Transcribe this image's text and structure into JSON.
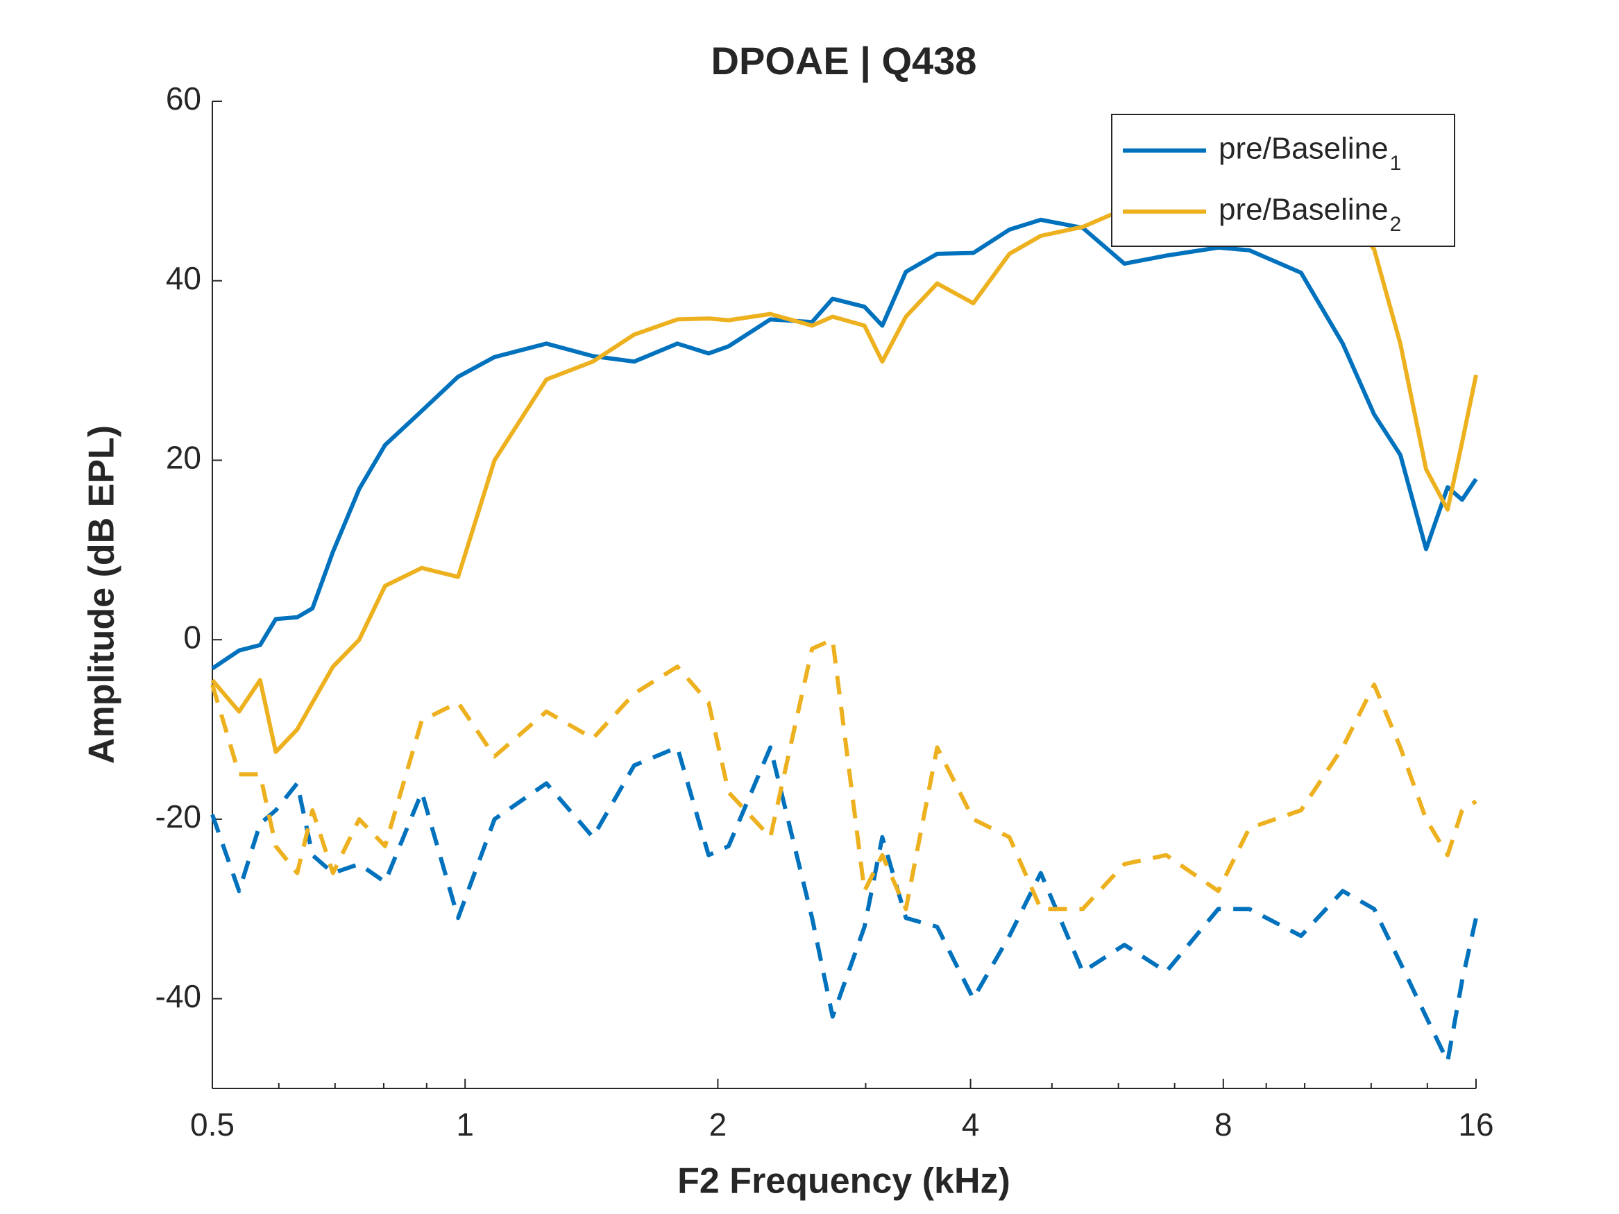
{
  "chart_data": {
    "type": "line",
    "title": "DPOAE | Q438",
    "x_label": "F2 Frequency (kHz)",
    "y_label": "Amplitude (dB EPL)",
    "xscale": "log",
    "xlim": [
      0.5,
      16
    ],
    "xticks": [
      0.5,
      1,
      2,
      4,
      8,
      16
    ],
    "xminorticks": [
      0.6,
      0.7,
      0.8,
      0.9,
      3,
      5,
      6,
      7,
      9,
      10,
      12,
      14
    ],
    "ylim": [
      -50,
      60
    ],
    "yticks": [
      -40,
      -20,
      0,
      20,
      40,
      60
    ],
    "grid": false,
    "legend": "northeast",
    "x": [
      0.5,
      0.538,
      0.57,
      0.595,
      0.631,
      0.658,
      0.696,
      0.748,
      0.803,
      0.888,
      0.981,
      1.084,
      1.25,
      1.42,
      1.59,
      1.79,
      1.95,
      2.06,
      2.31,
      2.59,
      2.74,
      2.99,
      3.14,
      3.35,
      3.65,
      4.03,
      4.45,
      4.85,
      5.44,
      6.1,
      6.84,
      7.89,
      8.59,
      9.9,
      11.1,
      12.1,
      13.0,
      13.95,
      14.8,
      15.4,
      16
    ],
    "series": [
      {
        "name": "pre/Baseline",
        "subscript": "1",
        "color": "#0072BD",
        "dashed": false,
        "values": [
          -3.2,
          -1.2,
          -0.6,
          2.3,
          2.5,
          3.5,
          9.8,
          16.8,
          21.7,
          25.5,
          29.3,
          31.5,
          33,
          31.6,
          31,
          33,
          31.9,
          32.7,
          35.7,
          35.4,
          38,
          37.1,
          35,
          41,
          43,
          43.1,
          45.7,
          46.8,
          45.9,
          41.9,
          42.8,
          43.7,
          43.4,
          40.9,
          33,
          25.1,
          20.6,
          10.1,
          17,
          15.6,
          17.9
        ]
      },
      {
        "name": "pre/Baseline",
        "subscript": "2",
        "color": "#EDB120",
        "dashed": false,
        "values": [
          -4.5,
          -8,
          -4.5,
          -12.5,
          -10,
          -7,
          -3,
          0,
          6,
          8,
          7,
          20,
          29,
          31,
          34,
          35.7,
          35.8,
          35.6,
          36.3,
          35,
          36,
          35,
          31,
          36,
          39.7,
          37.5,
          43,
          45,
          46,
          48,
          50,
          51,
          51,
          50,
          48,
          43.5,
          33,
          19,
          14.5,
          22,
          29.5
        ]
      },
      {
        "color": "#0072BD",
        "dashed": true,
        "values": [
          -19.5,
          -28,
          -20.5,
          -19,
          -16,
          -24,
          -26,
          -25,
          -27,
          -17,
          -31,
          -20,
          -16,
          -22,
          -14,
          -12,
          -24,
          -23,
          -12,
          -31,
          -42,
          -32,
          -22,
          -31,
          -32,
          -40,
          -33,
          -26,
          -37,
          -34,
          -37,
          -30,
          -30,
          -33,
          -28,
          -30,
          -36,
          -42,
          -47,
          -38,
          -31
        ]
      },
      {
        "color": "#EDB120",
        "dashed": true,
        "values": [
          -5,
          -15,
          -15,
          -23,
          -26,
          -19,
          -26,
          -20,
          -23,
          -9,
          -7,
          -13,
          -8,
          -11,
          -6,
          -3,
          -7,
          -17,
          -22,
          -1,
          0,
          -28,
          -24,
          -30,
          -12,
          -20,
          -22,
          -30,
          -30,
          -25,
          -24,
          -28,
          -21,
          -19,
          -12,
          -5,
          -12,
          -20,
          -24,
          -19,
          -18
        ]
      }
    ]
  }
}
